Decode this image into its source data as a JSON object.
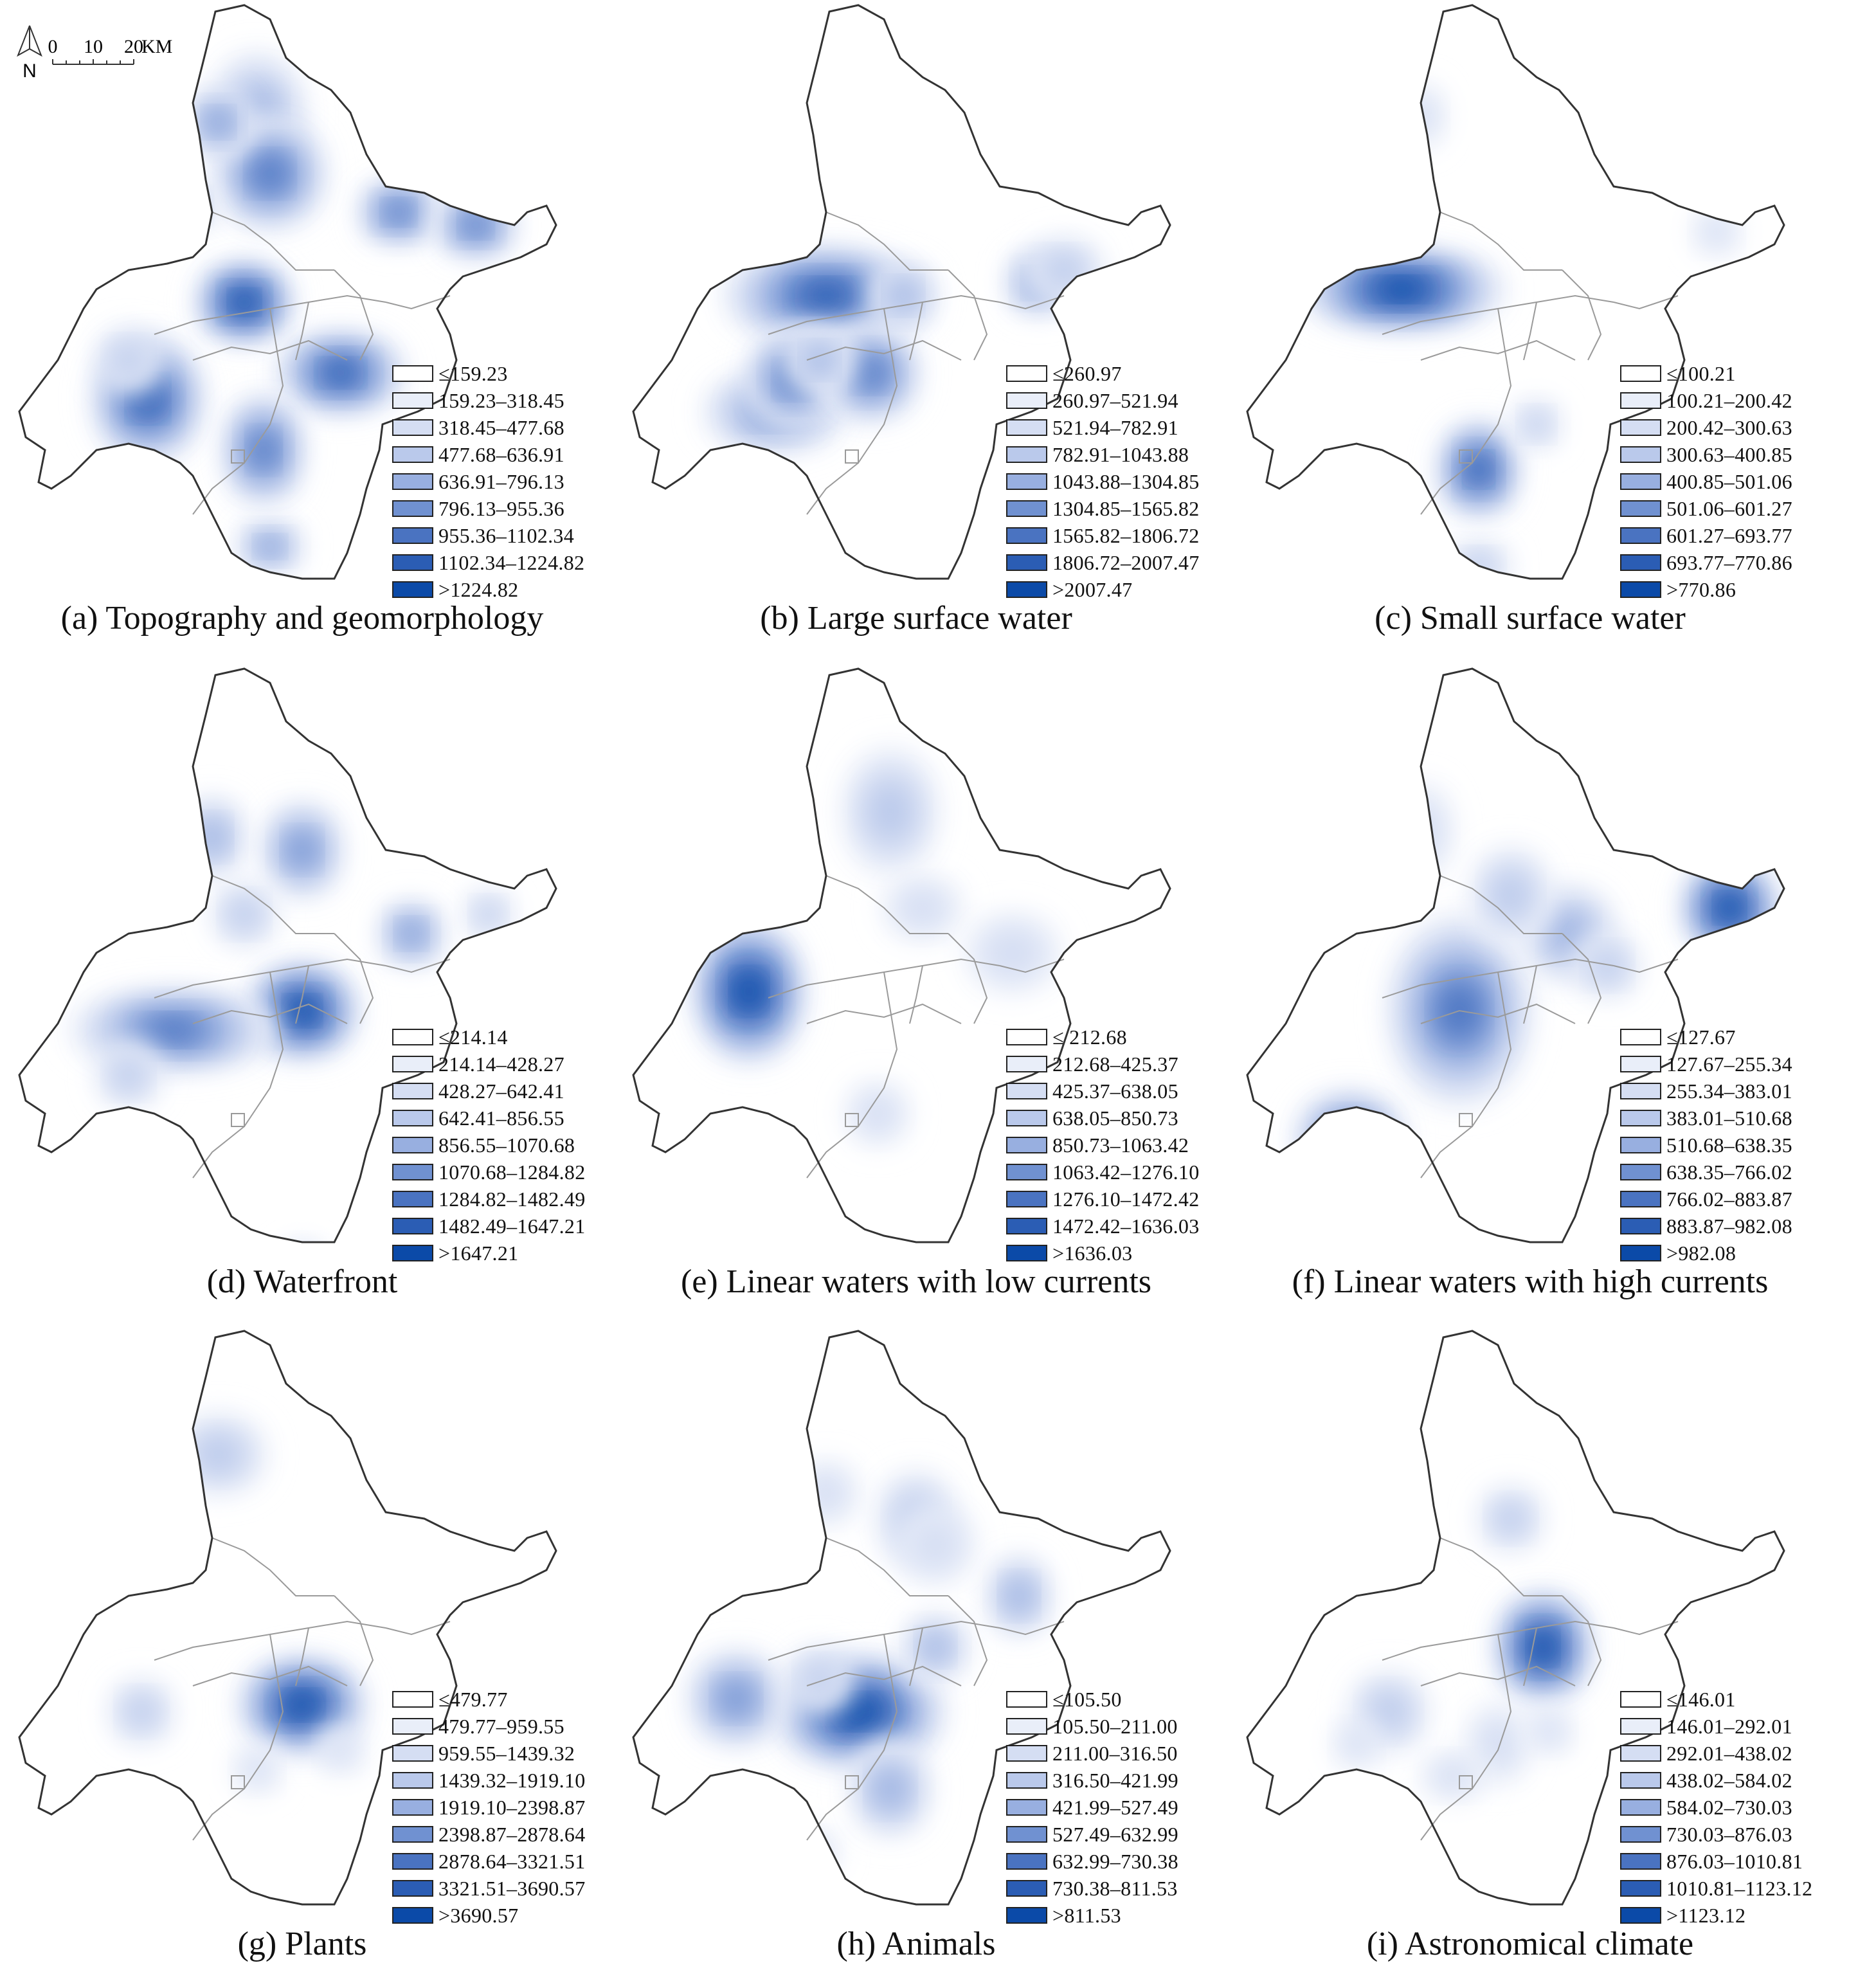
{
  "north_label": "N",
  "scale": {
    "ticks": [
      "0",
      "10",
      "20"
    ],
    "unit": "KM"
  },
  "palette": [
    "#ffffff",
    "#e9eef9",
    "#d5def3",
    "#bac9eb",
    "#98afe0",
    "#7091d1",
    "#4a73c1",
    "#2b5db4",
    "#0b4aa8"
  ],
  "panels": [
    {
      "caption": "(a) Topography and geomorphology",
      "legend": [
        "≤159.23",
        "159.23–318.45",
        "318.45–477.68",
        "477.68–636.91",
        "636.91–796.13",
        "796.13–955.36",
        "955.36–1102.34",
        "1102.34–1224.82",
        ">1224.82"
      ]
    },
    {
      "caption": "(b) Large surface water",
      "legend": [
        "≤260.97",
        "260.97–521.94",
        "521.94–782.91",
        "782.91–1043.88",
        "1043.88–1304.85",
        "1304.85–1565.82",
        "1565.82–1806.72",
        "1806.72–2007.47",
        ">2007.47"
      ]
    },
    {
      "caption": "(c) Small surface water",
      "legend": [
        "≤100.21",
        "100.21–200.42",
        "200.42–300.63",
        "300.63–400.85",
        "400.85–501.06",
        "501.06–601.27",
        "601.27–693.77",
        "693.77–770.86",
        ">770.86"
      ]
    },
    {
      "caption": "(d) Waterfront",
      "legend": [
        "≤214.14",
        "214.14–428.27",
        "428.27–642.41",
        "642.41–856.55",
        "856.55–1070.68",
        "1070.68–1284.82",
        "1284.82–1482.49",
        "1482.49–1647.21",
        ">1647.21"
      ]
    },
    {
      "caption": "(e) Linear waters with low currents",
      "legend": [
        "≤ 212.68",
        "212.68–425.37",
        "425.37–638.05",
        "638.05–850.73",
        "850.73–1063.42",
        "1063.42–1276.10",
        "1276.10–1472.42",
        "1472.42–1636.03",
        ">1636.03"
      ]
    },
    {
      "caption": "(f) Linear waters with high currents",
      "legend": [
        "≤127.67",
        "127.67–255.34",
        "255.34–383.01",
        "383.01–510.68",
        "510.68–638.35",
        "638.35–766.02",
        "766.02–883.87",
        "883.87–982.08",
        ">982.08"
      ]
    },
    {
      "caption": "(g) Plants",
      "legend": [
        "≤479.77",
        "479.77–959.55",
        "959.55–1439.32",
        "1439.32–1919.10",
        "1919.10–2398.87",
        "2398.87–2878.64",
        "2878.64–3321.51",
        "3321.51–3690.57",
        ">3690.57"
      ]
    },
    {
      "caption": "(h) Animals",
      "legend": [
        "≤105.50",
        "105.50–211.00",
        "211.00–316.50",
        "316.50–421.99",
        "421.99–527.49",
        "527.49–632.99",
        "632.99–730.38",
        "730.38–811.53",
        ">811.53"
      ]
    },
    {
      "caption": "(i) Astronomical climate",
      "legend": [
        "≤146.01",
        "146.01–292.01",
        "292.01–438.02",
        "438.02–584.02",
        "584.02–730.03",
        "730.03–876.03",
        "876.03–1010.81",
        "1010.81–1123.12",
        ">1123.12"
      ]
    }
  ]
}
